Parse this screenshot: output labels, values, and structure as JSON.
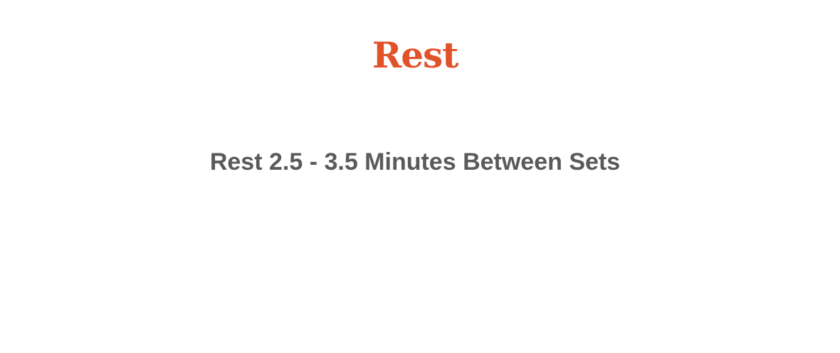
{
  "section": {
    "title": "Rest",
    "title_color": "#e2522a"
  },
  "instruction": {
    "text": "Rest 2.5 - 3.5 Minutes Between Sets",
    "color": "#5a5a5a"
  }
}
